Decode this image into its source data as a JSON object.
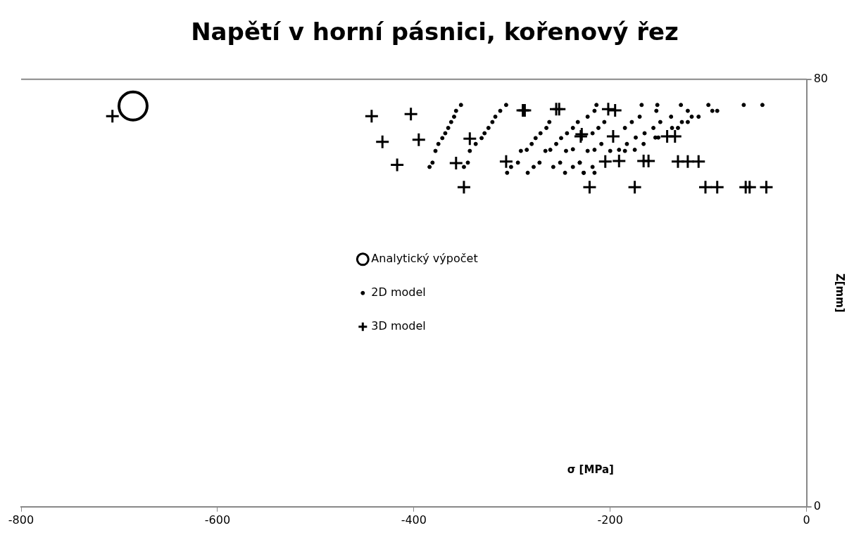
{
  "chart_data": {
    "type": "scatter",
    "title": "Napětí v horní pásnici, kořenový řez",
    "xlabel": "σ [MPa]",
    "ylabel": "Z[mm]",
    "xlim": [
      -800,
      0
    ],
    "xticks": [
      -800,
      -600,
      -400,
      -200,
      0
    ],
    "ylim": [
      0,
      80
    ],
    "yticks": [
      0,
      80
    ],
    "legend": "center",
    "series": [
      {
        "name": "Analytický výpočet",
        "color": "#000000",
        "marker": "circle",
        "x": [
          -686
        ],
        "values": [
          75
        ]
      },
      {
        "name": "2D model",
        "color": "#000000",
        "marker": "circle",
        "x": [
          -352,
          -357,
          -359,
          -362,
          -365,
          -368,
          -371,
          -375,
          -378,
          -381,
          -384,
          -306,
          -312,
          -317,
          -320,
          -324,
          -328,
          -331,
          -337,
          -343,
          -345,
          -349,
          -262,
          -265,
          -271,
          -276,
          -280,
          -285,
          -291,
          -294,
          -301,
          -305,
          -233,
          -238,
          -244,
          -250,
          -255,
          -261,
          -266,
          -272,
          -278,
          -284,
          -238,
          -245,
          -251,
          -258,
          -231,
          -238,
          -246,
          -227,
          -214,
          -216,
          -223,
          -206,
          -212,
          -218,
          -209,
          -223,
          -216,
          -231,
          -218,
          -227,
          -216,
          -168,
          -170,
          -178,
          -185,
          -165,
          -174,
          -183,
          -166,
          -200,
          -191,
          -185,
          -175,
          -152,
          -153,
          -149,
          -156,
          -154,
          -151,
          -138,
          -128,
          -121,
          -127,
          -121,
          -117,
          -110,
          -137,
          -131,
          -100,
          -96,
          -91,
          -64,
          -45
        ],
        "values": [
          75.2,
          74.1,
          73.0,
          72.0,
          70.9,
          69.9,
          69.0,
          67.9,
          66.6,
          64.4,
          63.6,
          75.2,
          74.1,
          73.0,
          72.0,
          70.9,
          69.9,
          69.0,
          67.9,
          66.6,
          64.4,
          63.6,
          72.0,
          70.9,
          69.9,
          69.0,
          67.9,
          66.8,
          66.6,
          64.4,
          63.6,
          62.5,
          72.0,
          70.9,
          69.9,
          69.0,
          67.9,
          66.8,
          66.6,
          64.4,
          63.6,
          62.5,
          66.9,
          66.6,
          64.4,
          63.6,
          64.4,
          63.6,
          62.5,
          62.5,
          75.2,
          74.1,
          73.0,
          72.0,
          70.9,
          69.9,
          67.9,
          66.6,
          66.8,
          64.4,
          63.6,
          62.5,
          62.5,
          75.2,
          73.0,
          72.0,
          70.9,
          69.9,
          69.1,
          67.9,
          67.9,
          66.6,
          66.8,
          66.6,
          66.8,
          75.2,
          74.1,
          72.0,
          70.9,
          69.1,
          69.1,
          73.0,
          75.2,
          74.1,
          72.0,
          72.0,
          73.0,
          73.0,
          70.9,
          70.9,
          75.2,
          74.1,
          74.1,
          75.2,
          75.2
        ]
      },
      {
        "name": "3D model",
        "color": "#000000",
        "marker": "cross",
        "x": [
          -707,
          -443,
          -403,
          -289,
          -287,
          -255,
          -252,
          -202,
          -195,
          -432,
          -395,
          -343,
          -230,
          -229,
          -197,
          -142,
          -134,
          -417,
          -357,
          -306,
          -205,
          -191,
          -166,
          -161,
          -131,
          -121,
          -110,
          -349,
          -221,
          -175,
          -103,
          -91,
          -62,
          -58,
          -41
        ],
        "values": [
          73.1,
          73.1,
          73.5,
          74.2,
          74.2,
          74.4,
          74.4,
          74.4,
          74.2,
          68.3,
          68.7,
          68.9,
          69.3,
          69.7,
          69.3,
          69.3,
          69.3,
          64.0,
          64.3,
          64.6,
          64.6,
          64.7,
          64.7,
          64.7,
          64.6,
          64.6,
          64.6,
          59.8,
          59.8,
          59.8,
          59.8,
          59.8,
          59.8,
          59.8,
          59.8
        ]
      }
    ]
  }
}
